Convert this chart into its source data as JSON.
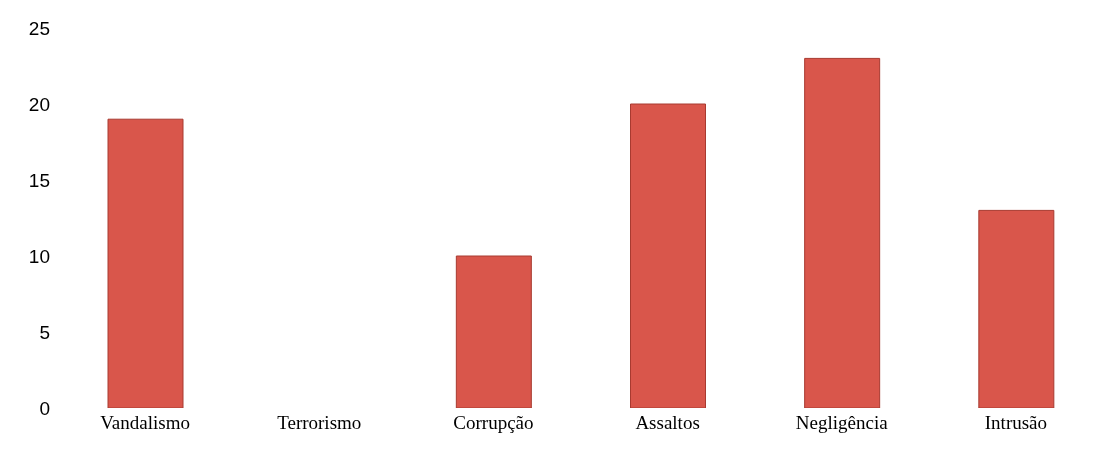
{
  "chart_data": {
    "type": "bar",
    "categories": [
      "Vandalismo",
      "Terrorismo",
      "Corrupção",
      "Assaltos",
      "Negligência",
      "Intrusão"
    ],
    "values": [
      19,
      0,
      10,
      20,
      23,
      13
    ],
    "color": "#d9564b",
    "ylim": [
      0,
      25
    ],
    "yticks": [
      0,
      5,
      10,
      15,
      20,
      25
    ],
    "grid": false,
    "legend": false
  }
}
